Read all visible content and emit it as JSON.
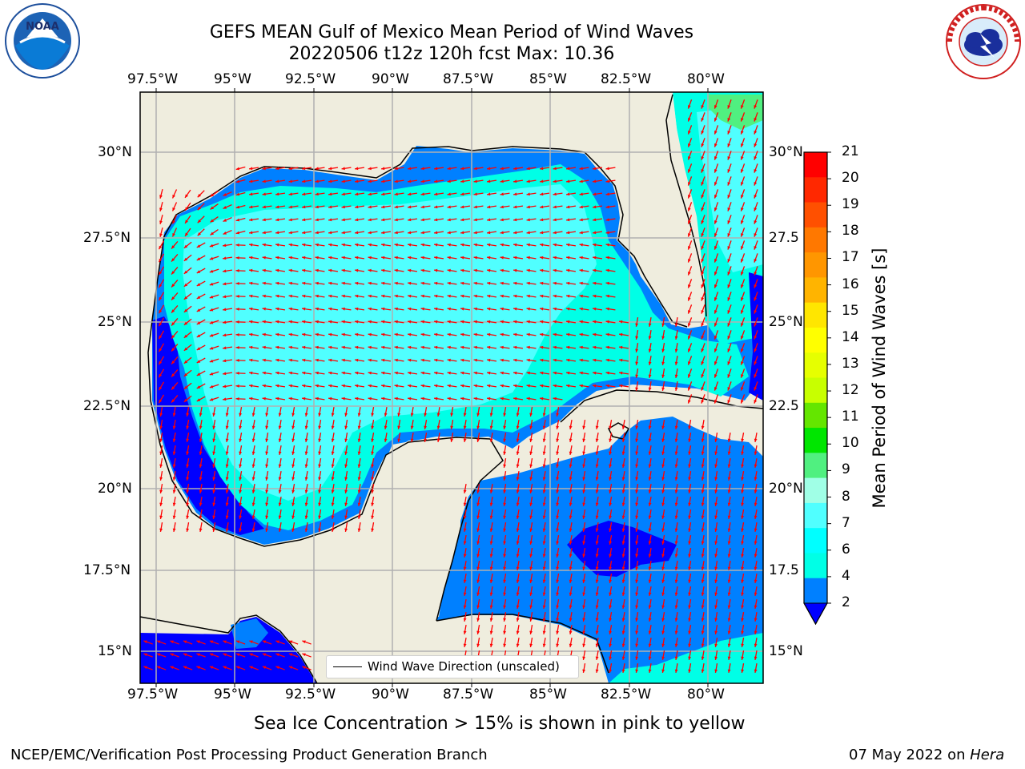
{
  "title_line1": "GEFS MEAN Gulf of Mexico Mean Period of Wind Waves",
  "title_line2": "20220506 t12z 120h fcst   Max: 10.36",
  "lon_ticks": [
    "97.5°W",
    "95°W",
    "92.5°W",
    "90°W",
    "87.5°W",
    "85°W",
    "82.5°W",
    "80°W"
  ],
  "lat_ticks_left": [
    "30°N",
    "27.5°N",
    "25°N",
    "22.5°N",
    "20°N",
    "17.5°N",
    "15°N"
  ],
  "lat_ticks_right": [
    "30°N",
    "27.5",
    "25°N",
    "22.5",
    "20°N",
    "17.5",
    "15°N"
  ],
  "colorbar": {
    "label": "Mean Period of Wind Waves [s]",
    "ticks": [
      "21",
      "20",
      "19",
      "18",
      "17",
      "16",
      "15",
      "14",
      "13",
      "12",
      "11",
      "10",
      "9",
      "8",
      "7",
      "6",
      "4",
      "2"
    ],
    "colors": [
      "#ff0000",
      "#ff2800",
      "#ff5000",
      "#ff7800",
      "#ff9600",
      "#ffb400",
      "#ffe600",
      "#ffff00",
      "#e6ff00",
      "#c8ff00",
      "#64e600",
      "#00e600",
      "#50f080",
      "#a0ffe6",
      "#50ffff",
      "#00ffff",
      "#00ffe6",
      "#0080ff"
    ],
    "extend_color": "#0000ff"
  },
  "legend_label": "Wind Wave Direction (unscaled)",
  "subtitle": "Sea Ice Concentration > 15% is shown in pink to yellow",
  "footer_left": "NCEP/EMC/Verification Post Processing Product Generation Branch",
  "footer_right_date": "07 May 2022 on ",
  "footer_right_machine": "Hera",
  "logo_left_text": "NOAA",
  "logo_left_ring_text": "NATIONAL OCEANIC AND ATMOSPHERIC ADMINISTRATION · U.S. DEPARTMENT OF COMMERCE",
  "logo_right_ring_text": "NATIONAL WEATHER SERVICE",
  "colors": {
    "land": "#efedde",
    "arrow": "#ff0000",
    "grid": "#b0b0b0",
    "shade_2": "#0080ff",
    "shade_4": "#00ffe6",
    "shade_6": "#50ffff",
    "shade_8": "#a0ffff",
    "shade_9": "#50f080",
    "shade_low": "#0000ff"
  }
}
